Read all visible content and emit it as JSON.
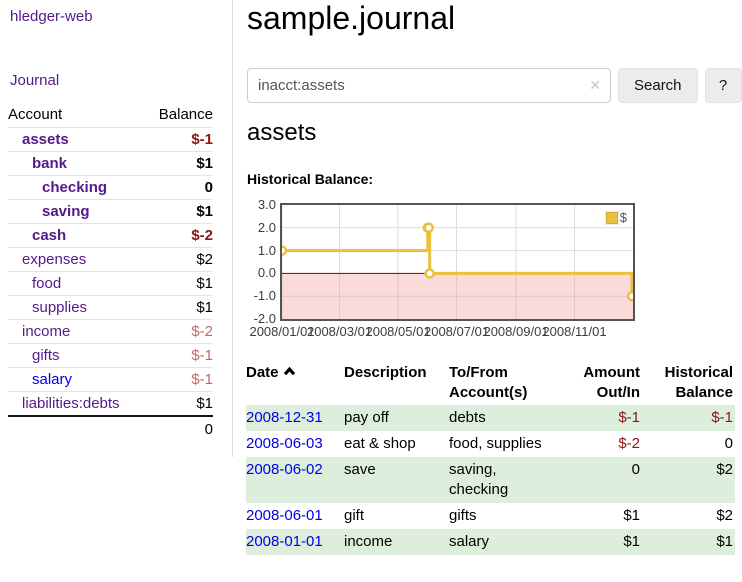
{
  "app": {
    "title": "hledger-web"
  },
  "icons": {
    "clear": "✕",
    "sort": "chevron-up",
    "legend_swatch": "yellow-square"
  },
  "colors": {
    "link_purple": "#551a8b",
    "link_blue": "#0000ee",
    "negative_strong": "#8b1414",
    "negative_soft": "#bd6a6a",
    "row_green": "#ddeedd",
    "series_yellow": "#e8c23f",
    "zero_line": "#8b0000",
    "negative_region": "rgba(244,150,150,0.35)",
    "gridline": "#dcdcdc",
    "plot_border": "#545454"
  },
  "sidebar": {
    "journal_link": "Journal",
    "accounts_table": {
      "headers": [
        "Account",
        "Balance"
      ],
      "rows": [
        {
          "name": "assets",
          "balance": "$-1",
          "depth": 1,
          "emph": true,
          "value_tone": "neg-strong",
          "link_color": "purple"
        },
        {
          "name": "bank",
          "balance": "$1",
          "depth": 2,
          "emph": true,
          "value_tone": "normal",
          "link_color": "purple"
        },
        {
          "name": "checking",
          "balance": "0",
          "depth": 3,
          "emph": true,
          "value_tone": "normal",
          "link_color": "purple"
        },
        {
          "name": "saving",
          "balance": "$1",
          "depth": 3,
          "emph": true,
          "value_tone": "normal",
          "link_color": "purple"
        },
        {
          "name": "cash",
          "balance": "$-2",
          "depth": 2,
          "emph": true,
          "value_tone": "neg-strong",
          "link_color": "purple"
        },
        {
          "name": "expenses",
          "balance": "$2",
          "depth": 1,
          "emph": false,
          "value_tone": "normal",
          "link_color": "purple"
        },
        {
          "name": "food",
          "balance": "$1",
          "depth": 2,
          "emph": false,
          "value_tone": "normal",
          "link_color": "purple"
        },
        {
          "name": "supplies",
          "balance": "$1",
          "depth": 2,
          "emph": false,
          "value_tone": "normal",
          "link_color": "purple"
        },
        {
          "name": "income",
          "balance": "$-2",
          "depth": 1,
          "emph": false,
          "value_tone": "neg-soft",
          "link_color": "purple"
        },
        {
          "name": "gifts",
          "balance": "$-1",
          "depth": 2,
          "emph": false,
          "value_tone": "neg-soft",
          "link_color": "purple"
        },
        {
          "name": "salary",
          "balance": "$-1",
          "depth": 2,
          "emph": false,
          "value_tone": "neg-soft",
          "link_color": "blue"
        },
        {
          "name": "liabilities:debts",
          "balance": "$1",
          "depth": 1,
          "emph": false,
          "value_tone": "normal",
          "link_color": "purple"
        }
      ],
      "total": "0"
    }
  },
  "main": {
    "title": "sample.journal",
    "search": {
      "value": "inacct:assets",
      "search_button": "Search",
      "help_button": "?"
    },
    "account_heading": "assets",
    "chart_label": "Historical Balance:"
  },
  "chart_data": {
    "type": "line",
    "title": "Historical Balance:",
    "step": true,
    "x_range": [
      "2008-01-01",
      "2009-01-01"
    ],
    "ylim": [
      -2,
      3
    ],
    "y_ticks": [
      3,
      2,
      1,
      0,
      -1,
      -2
    ],
    "x_ticks": [
      {
        "date": "2008-01-01",
        "label": "2008/01/01"
      },
      {
        "date": "2008-03-01",
        "label": "2008/03/01"
      },
      {
        "date": "2008-05-01",
        "label": "2008/05/01"
      },
      {
        "date": "2008-07-01",
        "label": "2008/07/01"
      },
      {
        "date": "2008-09-01",
        "label": "2008/09/01"
      },
      {
        "date": "2008-11-01",
        "label": "2008/11/01"
      }
    ],
    "series": [
      {
        "name": "$",
        "color": "#e8c23f",
        "points": [
          [
            "2008-01-01",
            1
          ],
          [
            "2008-06-01",
            2
          ],
          [
            "2008-06-02",
            2
          ],
          [
            "2008-06-03",
            0
          ],
          [
            "2008-12-31",
            -1
          ]
        ]
      }
    ],
    "legend_position": "top-right",
    "grid": true
  },
  "register": {
    "headers": [
      "Date",
      "Description",
      "To/From Account(s)",
      "Amount Out/In",
      "Historical Balance"
    ],
    "rows": [
      {
        "date": "2008-12-31",
        "description": "pay off",
        "accounts": "debts",
        "amount": "$-1",
        "balance": "$-1",
        "amount_neg": true,
        "balance_neg": true
      },
      {
        "date": "2008-06-03",
        "description": "eat & shop",
        "accounts": "food, supplies",
        "amount": "$-2",
        "balance": "0",
        "amount_neg": true,
        "balance_neg": false
      },
      {
        "date": "2008-06-02",
        "description": "save",
        "accounts": "saving, checking",
        "amount": "0",
        "balance": "$2",
        "amount_neg": false,
        "balance_neg": false
      },
      {
        "date": "2008-06-01",
        "description": "gift",
        "accounts": "gifts",
        "amount": "$1",
        "balance": "$2",
        "amount_neg": false,
        "balance_neg": false
      },
      {
        "date": "2008-01-01",
        "description": "income",
        "accounts": "salary",
        "amount": "$1",
        "balance": "$1",
        "amount_neg": false,
        "balance_neg": false
      }
    ]
  }
}
